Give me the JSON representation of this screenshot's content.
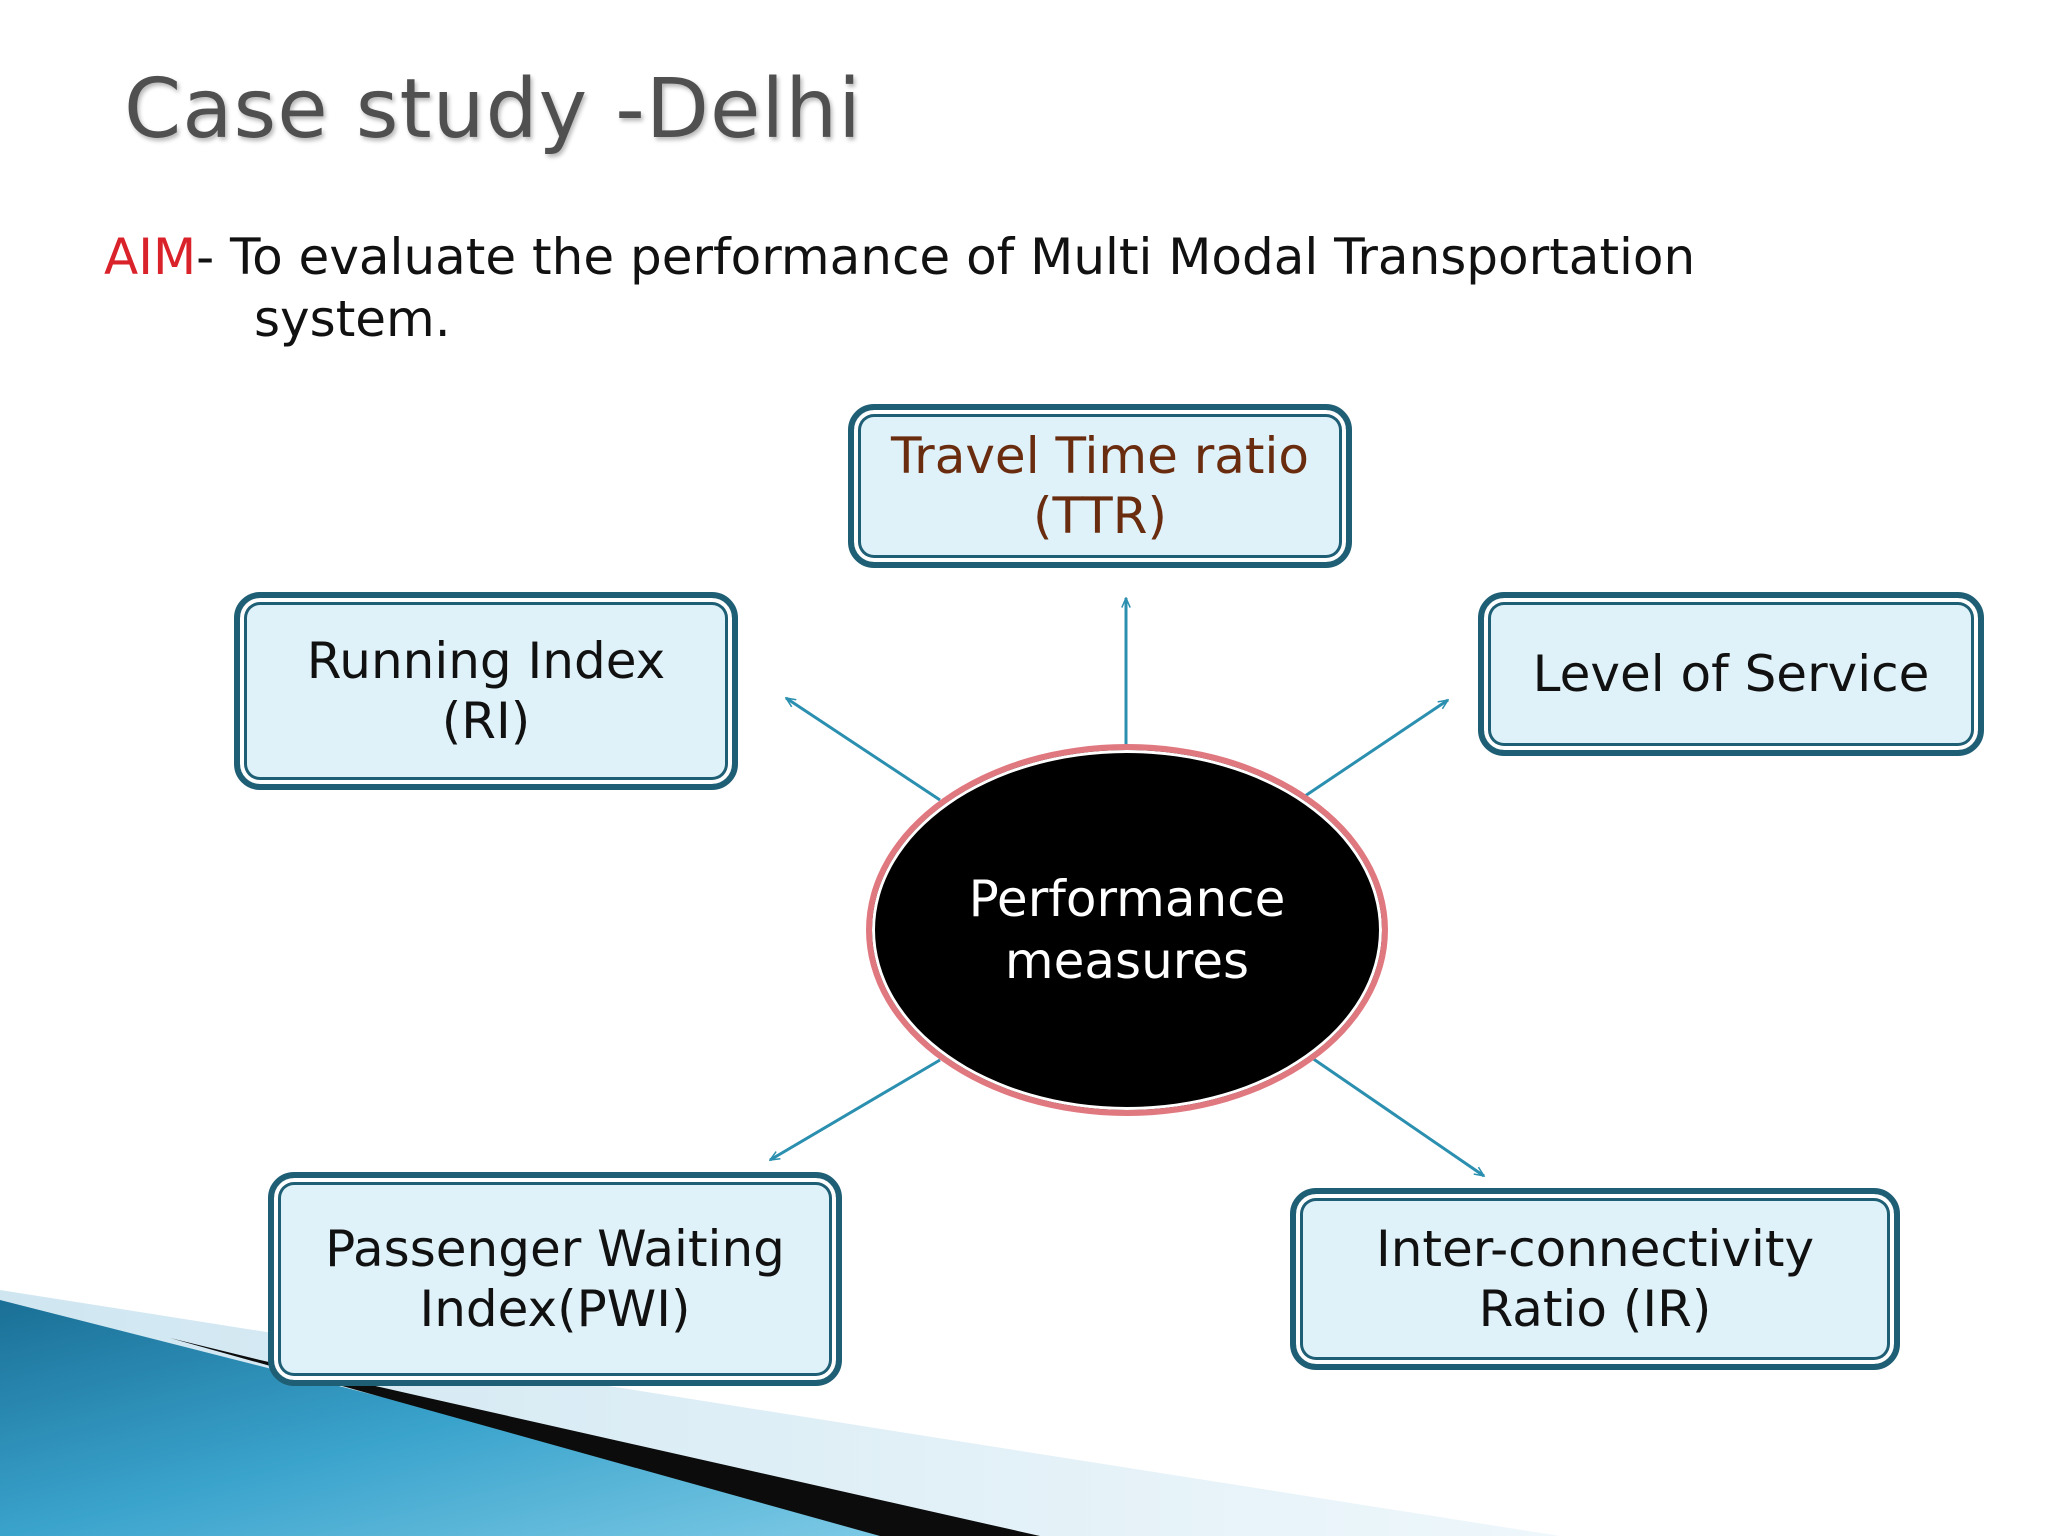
{
  "slide": {
    "title": "Case study -Delhi",
    "aim_label": "AIM",
    "aim_text_line1": "- To evaluate the performance of Multi Modal Transportation",
    "aim_text_line2": "system."
  },
  "diagram": {
    "center": {
      "label": "Performance\nmeasures"
    },
    "measures": [
      {
        "id": "ttr",
        "label": "Travel Time ratio\n(TTR)"
      },
      {
        "id": "ri",
        "label": "Running Index\n(RI)"
      },
      {
        "id": "los",
        "label": "Level of Service"
      },
      {
        "id": "pwi",
        "label": "Passenger Waiting\nIndex(PWI)"
      },
      {
        "id": "ir",
        "label": "Inter-connectivity\nRatio (IR)"
      }
    ]
  },
  "colors": {
    "accent_red": "#d9222a",
    "box_border": "#1f5f75",
    "box_fill": "#dff2f9",
    "arrow": "#2b8fb0",
    "ellipse_border": "#e07880",
    "ttr_text": "#6a2c0f"
  }
}
